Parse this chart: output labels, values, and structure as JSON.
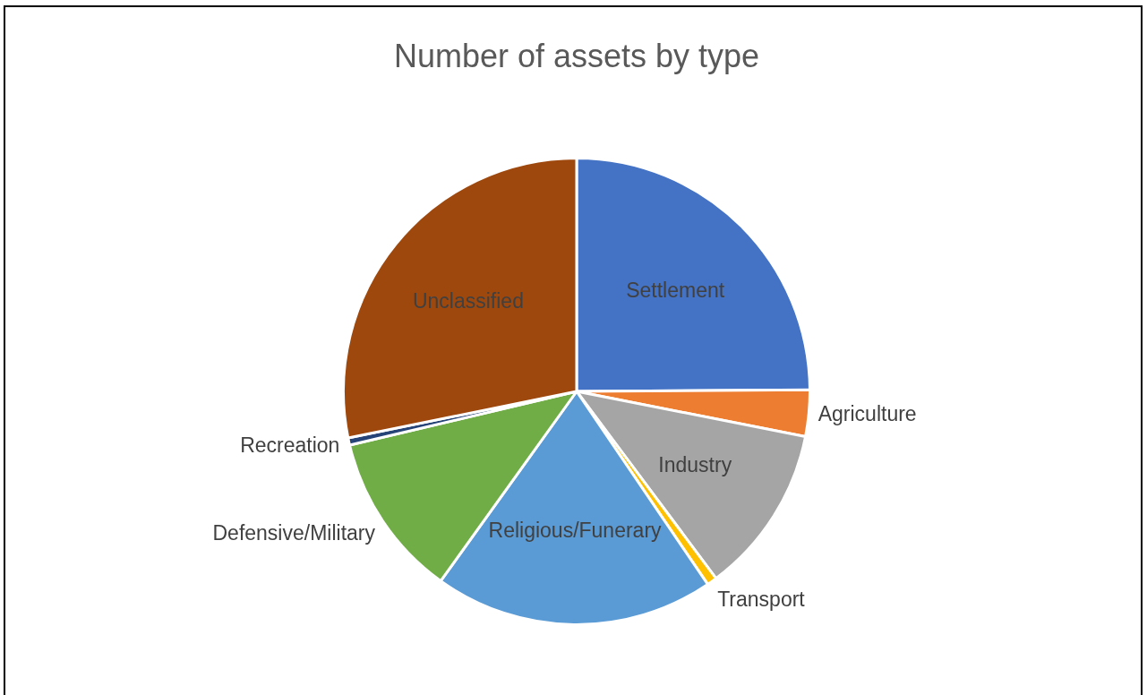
{
  "chart_data": {
    "type": "pie",
    "title": "Number of assets by type",
    "categories": [
      "Settlement",
      "Agriculture",
      "Industry",
      "Transport",
      "Religious/Funerary",
      "Defensive/Military",
      "Recreation",
      "Unclassified"
    ],
    "values": [
      24.9,
      3.2,
      11.7,
      0.7,
      19.4,
      11.4,
      0.5,
      28.2
    ],
    "colors": [
      "#4472c4",
      "#ed7d31",
      "#a5a5a5",
      "#ffc000",
      "#5b9bd5",
      "#70ad47",
      "#264478",
      "#9e480e"
    ],
    "legend": false
  }
}
